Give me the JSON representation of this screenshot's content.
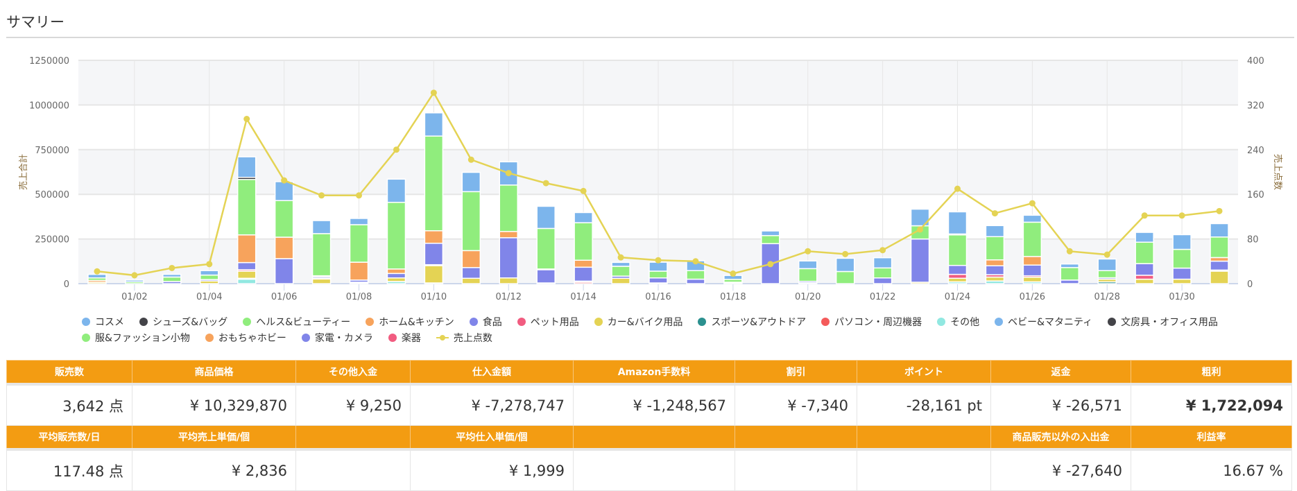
{
  "title": "サマリー",
  "chart_data": {
    "type": "bar",
    "stacked": true,
    "categories": [
      "01/01",
      "01/02",
      "01/03",
      "01/04",
      "01/05",
      "01/06",
      "01/07",
      "01/08",
      "01/09",
      "01/10",
      "01/11",
      "01/12",
      "01/13",
      "01/14",
      "01/15",
      "01/16",
      "01/17",
      "01/18",
      "01/19",
      "01/20",
      "01/21",
      "01/22",
      "01/23",
      "01/24",
      "01/25",
      "01/26",
      "01/27",
      "01/28",
      "01/29",
      "01/30",
      "01/31"
    ],
    "x_tick_labels": [
      "01/02",
      "01/04",
      "01/06",
      "01/08",
      "01/10",
      "01/12",
      "01/14",
      "01/16",
      "01/18",
      "01/20",
      "01/22",
      "01/24",
      "01/26",
      "01/28",
      "01/30"
    ],
    "ylabel": "売上合計",
    "y2label": "売上点数",
    "ylim": [
      0,
      1250000
    ],
    "y2lim": [
      0,
      400
    ],
    "y_ticks": [
      "0",
      "250000",
      "500000",
      "750000",
      "1000000",
      "1250000"
    ],
    "y2_ticks": [
      "0",
      "80",
      "160",
      "240",
      "320",
      "400"
    ],
    "legend_position": "bottom",
    "stack_order": [
      "その他",
      "スポーツ&アウトドア",
      "カー&バイク用品",
      "パソコン・周辺機器",
      "ペット用品",
      "食品",
      "ホーム&キッチン",
      "ヘルス&ビューティー",
      "シューズ&バッグ",
      "コスメ"
    ],
    "series": [
      {
        "name": "コスメ",
        "color": "#7cb5ec",
        "values": [
          20000,
          10000,
          15000,
          25000,
          115000,
          106000,
          73000,
          35000,
          130000,
          130000,
          108000,
          130000,
          124000,
          57000,
          22000,
          50000,
          55000,
          22000,
          26000,
          43000,
          74000,
          57000,
          93000,
          124000,
          62000,
          39000,
          20000,
          65000,
          55000,
          82000,
          75000
        ]
      },
      {
        "name": "シューズ&バッグ",
        "color": "#434348",
        "values": [
          0,
          0,
          0,
          0,
          12000,
          0,
          0,
          0,
          0,
          0,
          0,
          0,
          0,
          0,
          0,
          0,
          0,
          0,
          0,
          0,
          0,
          0,
          0,
          5000,
          0,
          0,
          0,
          0,
          0,
          0,
          0
        ]
      },
      {
        "name": "ヘルス&ビューティー",
        "color": "#90ed7d",
        "values": [
          14000,
          10000,
          25000,
          25000,
          310000,
          205000,
          236000,
          210000,
          373000,
          530000,
          330000,
          260000,
          227000,
          210000,
          55000,
          38000,
          48000,
          16000,
          45000,
          71000,
          68000,
          56000,
          74000,
          171000,
          130000,
          192000,
          70000,
          40000,
          120000,
          105000,
          115000
        ]
      },
      {
        "name": "ホーム&キッチン",
        "color": "#f7a35c",
        "values": [
          10000,
          0,
          0,
          0,
          155000,
          120000,
          5000,
          100000,
          25000,
          70000,
          95000,
          35000,
          4000,
          39000,
          0,
          0,
          0,
          4000,
          0,
          0,
          0,
          0,
          0,
          0,
          33000,
          48000,
          0,
          0,
          0,
          0,
          20000
        ]
      },
      {
        "name": "食品",
        "color": "#8085e9",
        "values": [
          0,
          0,
          12000,
          8000,
          40000,
          140000,
          8000,
          12000,
          25000,
          120000,
          60000,
          225000,
          74000,
          78000,
          12000,
          28000,
          25000,
          0,
          224000,
          8000,
          0,
          32000,
          242000,
          50000,
          50000,
          60000,
          20000,
          8000,
          65000,
          62000,
          50000
        ]
      },
      {
        "name": "ペット用品",
        "color": "#f15c80",
        "values": [
          0,
          0,
          0,
          0,
          8000,
          0,
          5000,
          0,
          0,
          5000,
          0,
          0,
          0,
          6000,
          0,
          0,
          0,
          0,
          0,
          0,
          0,
          0,
          0,
          22000,
          13000,
          8000,
          0,
          0,
          22000,
          0,
          6000
        ]
      },
      {
        "name": "カー&バイク用品",
        "color": "#e4d354",
        "values": [
          8000,
          0,
          0,
          15000,
          40000,
          0,
          26000,
          4000,
          20000,
          97000,
          30000,
          32000,
          0,
          0,
          30000,
          4000,
          0,
          4000,
          0,
          0,
          0,
          0,
          8000,
          20000,
          22000,
          26000,
          0,
          15000,
          25000,
          25000,
          70000
        ]
      },
      {
        "name": "スポーツ&アウトドア",
        "color": "#2b908f",
        "values": [
          0,
          0,
          0,
          0,
          5000,
          0,
          0,
          0,
          0,
          0,
          0,
          0,
          0,
          0,
          0,
          0,
          0,
          0,
          0,
          0,
          0,
          0,
          0,
          0,
          0,
          0,
          0,
          10000,
          0,
          0,
          0
        ]
      },
      {
        "name": "パソコン・周辺機器",
        "color": "#f45b5b",
        "values": [
          0,
          0,
          0,
          0,
          0,
          0,
          0,
          0,
          0,
          0,
          0,
          0,
          0,
          8000,
          0,
          0,
          0,
          0,
          0,
          5000,
          0,
          0,
          0,
          0,
          0,
          0,
          0,
          0,
          0,
          0,
          0
        ]
      },
      {
        "name": "その他",
        "color": "#91e8e1",
        "values": [
          0,
          0,
          0,
          0,
          25000,
          0,
          0,
          4000,
          12000,
          4000,
          0,
          0,
          4000,
          0,
          0,
          0,
          0,
          0,
          0,
          0,
          0,
          0,
          0,
          10000,
          15000,
          10000,
          0,
          0,
          0,
          0,
          0
        ]
      },
      {
        "name": "ベビー&マタニティ",
        "color": "#7cb5ec"
      },
      {
        "name": "文房具・オフィス用品",
        "color": "#434348"
      },
      {
        "name": "服&ファッション小物",
        "color": "#90ed7d"
      },
      {
        "name": "おもちゃホビー",
        "color": "#f7a35c"
      },
      {
        "name": "家電・カメラ",
        "color": "#8085e9"
      },
      {
        "name": "楽器",
        "color": "#f15c80"
      }
    ],
    "line_series": {
      "name": "売上点数",
      "color": "#e4d354",
      "axis": "right",
      "values": [
        22,
        15,
        28,
        35,
        295,
        185,
        158,
        158,
        240,
        342,
        222,
        198,
        180,
        166,
        47,
        42,
        40,
        18,
        35,
        58,
        53,
        60,
        97,
        170,
        126,
        144,
        58,
        52,
        122,
        122,
        130
      ]
    }
  },
  "legend": {
    "row1": [
      "コスメ",
      "シューズ&バッグ",
      "ヘルス&ビューティー",
      "ホーム&キッチン",
      "食品",
      "ペット用品",
      "カー&バイク用品",
      "スポーツ&アウトドア",
      "パソコン・周辺機器",
      "その他",
      "ベビー&マタニティ",
      "文房具・オフィス用品"
    ],
    "row2": [
      "服&ファッション小物",
      "おもちゃホビー",
      "家電・カメラ",
      "楽器",
      "売上点数"
    ]
  },
  "summary": {
    "headers1": [
      "販売数",
      "商品価格",
      "その他入金",
      "仕入金額",
      "Amazon手数料",
      "割引",
      "ポイント",
      "返金",
      "粗利"
    ],
    "values1": [
      "3,642 点",
      "¥ 10,329,870",
      "¥ 9,250",
      "¥ -7,278,747",
      "¥ -1,248,567",
      "¥ -7,340",
      "-28,161 pt",
      "¥ -26,571",
      "¥ 1,722,094"
    ],
    "headers2": [
      "平均販売数/日",
      "平均売上単価/個",
      "",
      "平均仕入単価/個",
      "",
      "",
      "",
      "商品販売以外の入出金",
      "利益率"
    ],
    "values2": [
      "117.48 点",
      "¥ 2,836",
      "",
      "¥ 1,999",
      "",
      "",
      "",
      "¥ -27,640",
      "16.67 %"
    ]
  }
}
